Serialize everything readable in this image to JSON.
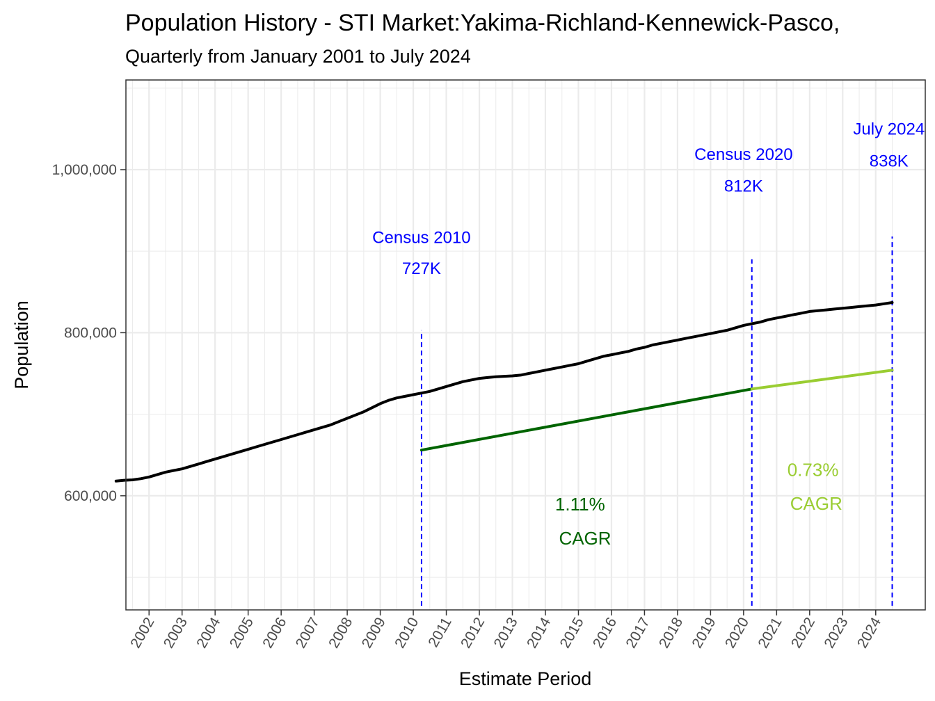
{
  "chart_data": {
    "type": "line",
    "title": "Population History - STI Market:Yakima-Richland-Kennewick-Pasco,",
    "subtitle": "Quarterly from January 2001 to July 2024",
    "xlabel": "Estimate Period",
    "ylabel": "Population",
    "xlim": [
      2001.3,
      2025.5
    ],
    "ylim": [
      460000,
      1110000
    ],
    "y_ticks": [
      600000,
      800000,
      1000000
    ],
    "y_tick_labels": [
      "600,000",
      "800,000",
      "1,000,000"
    ],
    "x_ticks": [
      2002,
      2003,
      2004,
      2005,
      2006,
      2007,
      2008,
      2009,
      2010,
      2011,
      2012,
      2013,
      2014,
      2015,
      2016,
      2017,
      2018,
      2019,
      2020,
      2021,
      2022,
      2023,
      2024
    ],
    "x_tick_labels": [
      "2002",
      "2003",
      "2004",
      "2005",
      "2006",
      "2007",
      "2008",
      "2009",
      "2010",
      "2011",
      "2012",
      "2013",
      "2014",
      "2015",
      "2016",
      "2017",
      "2018",
      "2019",
      "2020",
      "2021",
      "2022",
      "2023",
      "2024"
    ],
    "grid": true,
    "colors": {
      "population": "#000000",
      "census_marker": "#0000ff",
      "cagr_2010_2020": "#006400",
      "cagr_2020_2024": "#9acd32",
      "grid": "#ebebeb",
      "panel_border": "#333333"
    },
    "series": [
      {
        "x": [
          2001.0,
          2001.25,
          2001.5,
          2001.75,
          2002.0,
          2002.25,
          2002.5,
          2002.75,
          2003.0,
          2003.25,
          2003.5,
          2003.75,
          2004.0,
          2004.25,
          2004.5,
          2004.75,
          2005.0,
          2005.25,
          2005.5,
          2005.75,
          2006.0,
          2006.25,
          2006.5,
          2006.75,
          2007.0,
          2007.25,
          2007.5,
          2007.75,
          2008.0,
          2008.25,
          2008.5,
          2008.75,
          2009.0,
          2009.25,
          2009.5,
          2009.75,
          2010.0,
          2010.25,
          2010.5,
          2010.75,
          2011.0,
          2011.25,
          2011.5,
          2011.75,
          2012.0,
          2012.25,
          2012.5,
          2012.75,
          2013.0,
          2013.25,
          2013.5,
          2013.75,
          2014.0,
          2014.25,
          2014.5,
          2014.75,
          2015.0,
          2015.25,
          2015.5,
          2015.75,
          2016.0,
          2016.25,
          2016.5,
          2016.75,
          2017.0,
          2017.25,
          2017.5,
          2017.75,
          2018.0,
          2018.25,
          2018.5,
          2018.75,
          2019.0,
          2019.25,
          2019.5,
          2019.75,
          2020.0,
          2020.25,
          2020.5,
          2020.75,
          2021.0,
          2021.25,
          2021.5,
          2021.75,
          2022.0,
          2022.25,
          2022.5,
          2022.75,
          2023.0,
          2023.25,
          2023.5,
          2023.75,
          2024.0,
          2024.25,
          2024.5
        ],
        "values": [
          618000,
          619000,
          619500,
          621000,
          623000,
          626000,
          629000,
          631000,
          633000,
          636000,
          639000,
          642000,
          645000,
          648000,
          651000,
          654000,
          657000,
          660000,
          663000,
          666000,
          669000,
          672000,
          675000,
          678000,
          681000,
          684000,
          687000,
          691000,
          695000,
          699000,
          703000,
          708000,
          713000,
          717000,
          720000,
          722000,
          724000,
          726000,
          728000,
          731000,
          734000,
          737000,
          740000,
          742000,
          744000,
          745000,
          746000,
          746500,
          747000,
          748000,
          750000,
          752000,
          754000,
          756000,
          758000,
          760000,
          762000,
          765000,
          768000,
          771000,
          773000,
          775000,
          777000,
          780000,
          782000,
          785000,
          787000,
          789000,
          791000,
          793000,
          795000,
          797000,
          799000,
          801000,
          803000,
          806000,
          809000,
          811000,
          813000,
          816000,
          818000,
          820000,
          822000,
          824000,
          826000,
          827000,
          828000,
          829000,
          830000,
          831000,
          832000,
          833000,
          834000,
          835500,
          837000
        ]
      },
      {
        "name": "1.11% CAGR",
        "x": [
          2010.25,
          2020.25
        ],
        "values": [
          656000,
          731000
        ]
      },
      {
        "name": "0.73% CAGR",
        "x": [
          2020.25,
          2024.5
        ],
        "values": [
          731000,
          754000
        ]
      }
    ],
    "reference_lines": [
      {
        "x": 2010.25,
        "y_bottom": 465000,
        "y_top": 803000,
        "label_line1": "Census 2010",
        "label_line2": "727K"
      },
      {
        "x": 2020.25,
        "y_bottom": 465000,
        "y_top": 890000,
        "label_line1": "Census 2020",
        "label_line2": "812K"
      },
      {
        "x": 2024.5,
        "y_bottom": 465000,
        "y_top": 918000,
        "label_line1": "July 2024",
        "label_line2": "838K"
      }
    ],
    "annotations": [
      {
        "line1": "1.11%",
        "line2": "CAGR"
      },
      {
        "line1": "0.73%",
        "line2": "CAGR"
      }
    ]
  }
}
